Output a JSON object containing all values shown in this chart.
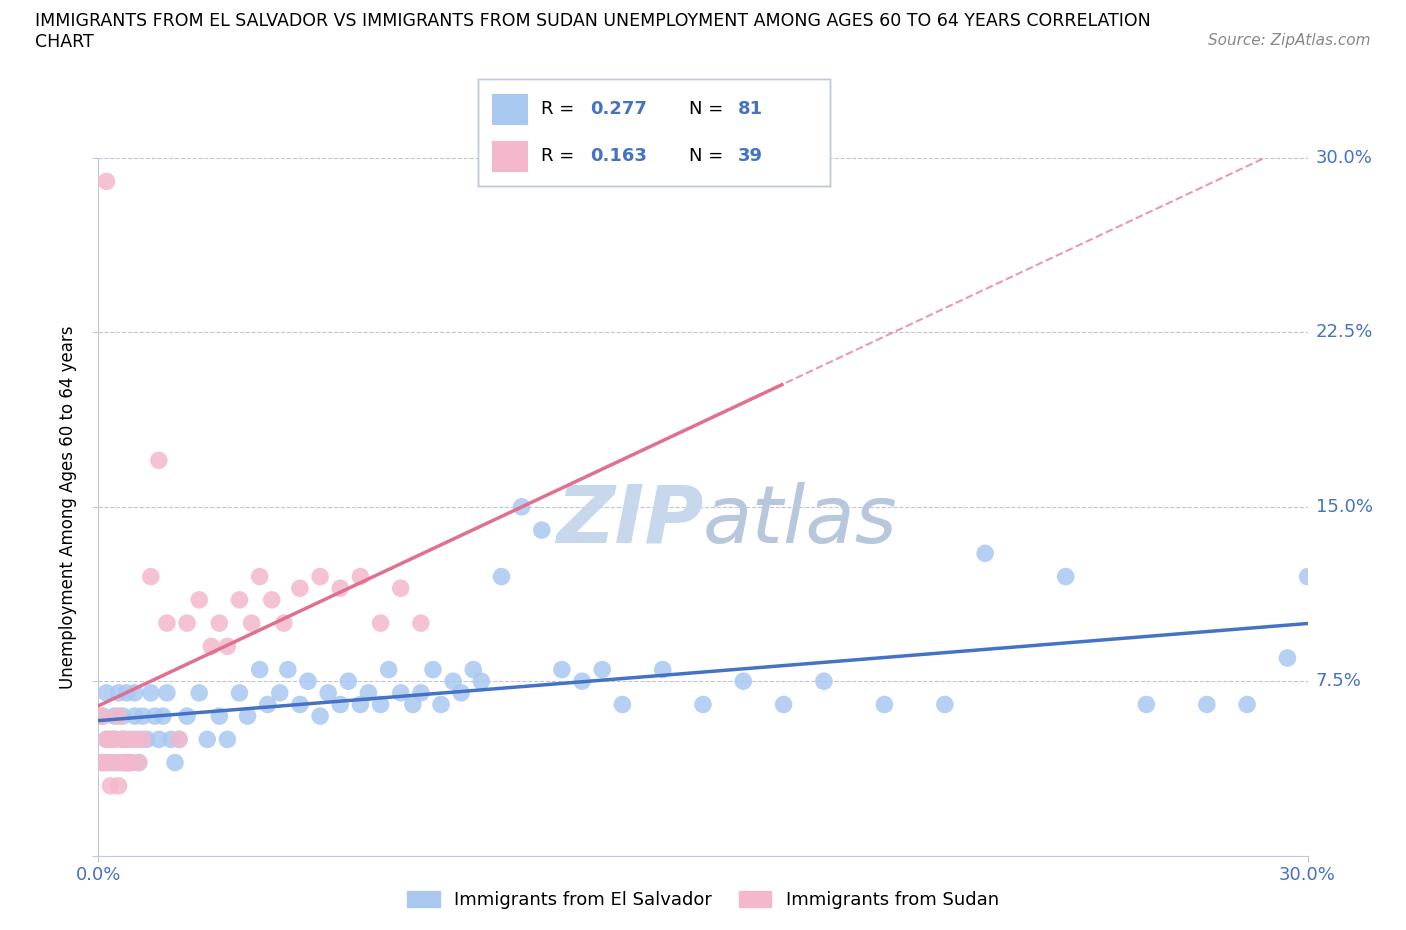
{
  "title_line1": "IMMIGRANTS FROM EL SALVADOR VS IMMIGRANTS FROM SUDAN UNEMPLOYMENT AMONG AGES 60 TO 64 YEARS CORRELATION",
  "title_line2": "CHART",
  "source": "Source: ZipAtlas.com",
  "ylabel": "Unemployment Among Ages 60 to 64 years",
  "xlim": [
    0.0,
    0.3
  ],
  "ylim": [
    0.0,
    0.3
  ],
  "yticks": [
    0.0,
    0.075,
    0.15,
    0.225,
    0.3
  ],
  "ytick_labels": [
    "",
    "7.5%",
    "15.0%",
    "22.5%",
    "30.0%"
  ],
  "legend_labels": [
    "Immigrants from El Salvador",
    "Immigrants from Sudan"
  ],
  "color_blue": "#a8c8f0",
  "color_pink": "#f4b8cc",
  "color_blue_text": "#4472c4",
  "color_pink_line": "#e07090",
  "color_blue_line": "#4472c4",
  "watermark_color": "#c8d8ec",
  "el_salvador_x": [
    0.001,
    0.001,
    0.002,
    0.002,
    0.003,
    0.003,
    0.004,
    0.004,
    0.005,
    0.005,
    0.006,
    0.006,
    0.007,
    0.007,
    0.008,
    0.008,
    0.009,
    0.009,
    0.01,
    0.01,
    0.011,
    0.012,
    0.013,
    0.014,
    0.015,
    0.016,
    0.017,
    0.018,
    0.019,
    0.02,
    0.022,
    0.025,
    0.027,
    0.03,
    0.032,
    0.035,
    0.037,
    0.04,
    0.042,
    0.045,
    0.047,
    0.05,
    0.052,
    0.055,
    0.057,
    0.06,
    0.062,
    0.065,
    0.067,
    0.07,
    0.072,
    0.075,
    0.078,
    0.08,
    0.083,
    0.085,
    0.088,
    0.09,
    0.093,
    0.095,
    0.1,
    0.105,
    0.11,
    0.115,
    0.12,
    0.125,
    0.13,
    0.14,
    0.15,
    0.16,
    0.17,
    0.18,
    0.195,
    0.21,
    0.22,
    0.24,
    0.26,
    0.275,
    0.285,
    0.295,
    0.3
  ],
  "el_salvador_y": [
    0.06,
    0.04,
    0.05,
    0.07,
    0.05,
    0.04,
    0.06,
    0.05,
    0.04,
    0.07,
    0.05,
    0.06,
    0.04,
    0.07,
    0.05,
    0.04,
    0.06,
    0.07,
    0.05,
    0.04,
    0.06,
    0.05,
    0.07,
    0.06,
    0.05,
    0.06,
    0.07,
    0.05,
    0.04,
    0.05,
    0.06,
    0.07,
    0.05,
    0.06,
    0.05,
    0.07,
    0.06,
    0.08,
    0.065,
    0.07,
    0.08,
    0.065,
    0.075,
    0.06,
    0.07,
    0.065,
    0.075,
    0.065,
    0.07,
    0.065,
    0.08,
    0.07,
    0.065,
    0.07,
    0.08,
    0.065,
    0.075,
    0.07,
    0.08,
    0.075,
    0.12,
    0.15,
    0.14,
    0.08,
    0.075,
    0.08,
    0.065,
    0.08,
    0.065,
    0.075,
    0.065,
    0.075,
    0.065,
    0.065,
    0.13,
    0.12,
    0.065,
    0.065,
    0.065,
    0.085,
    0.12
  ],
  "sudan_x": [
    0.001,
    0.001,
    0.002,
    0.002,
    0.003,
    0.003,
    0.004,
    0.004,
    0.005,
    0.005,
    0.006,
    0.006,
    0.007,
    0.007,
    0.008,
    0.009,
    0.01,
    0.011,
    0.013,
    0.015,
    0.017,
    0.02,
    0.022,
    0.025,
    0.028,
    0.03,
    0.032,
    0.035,
    0.038,
    0.04,
    0.043,
    0.046,
    0.05,
    0.055,
    0.06,
    0.065,
    0.07,
    0.075,
    0.08
  ],
  "sudan_y": [
    0.06,
    0.04,
    0.05,
    0.04,
    0.05,
    0.03,
    0.04,
    0.05,
    0.03,
    0.06,
    0.04,
    0.05,
    0.04,
    0.05,
    0.04,
    0.05,
    0.04,
    0.05,
    0.12,
    0.17,
    0.1,
    0.05,
    0.1,
    0.11,
    0.09,
    0.1,
    0.09,
    0.11,
    0.1,
    0.12,
    0.11,
    0.1,
    0.115,
    0.12,
    0.115,
    0.12,
    0.1,
    0.115,
    0.1
  ],
  "sudan_outlier_x": [
    0.002
  ],
  "sudan_outlier_y": [
    0.29
  ]
}
